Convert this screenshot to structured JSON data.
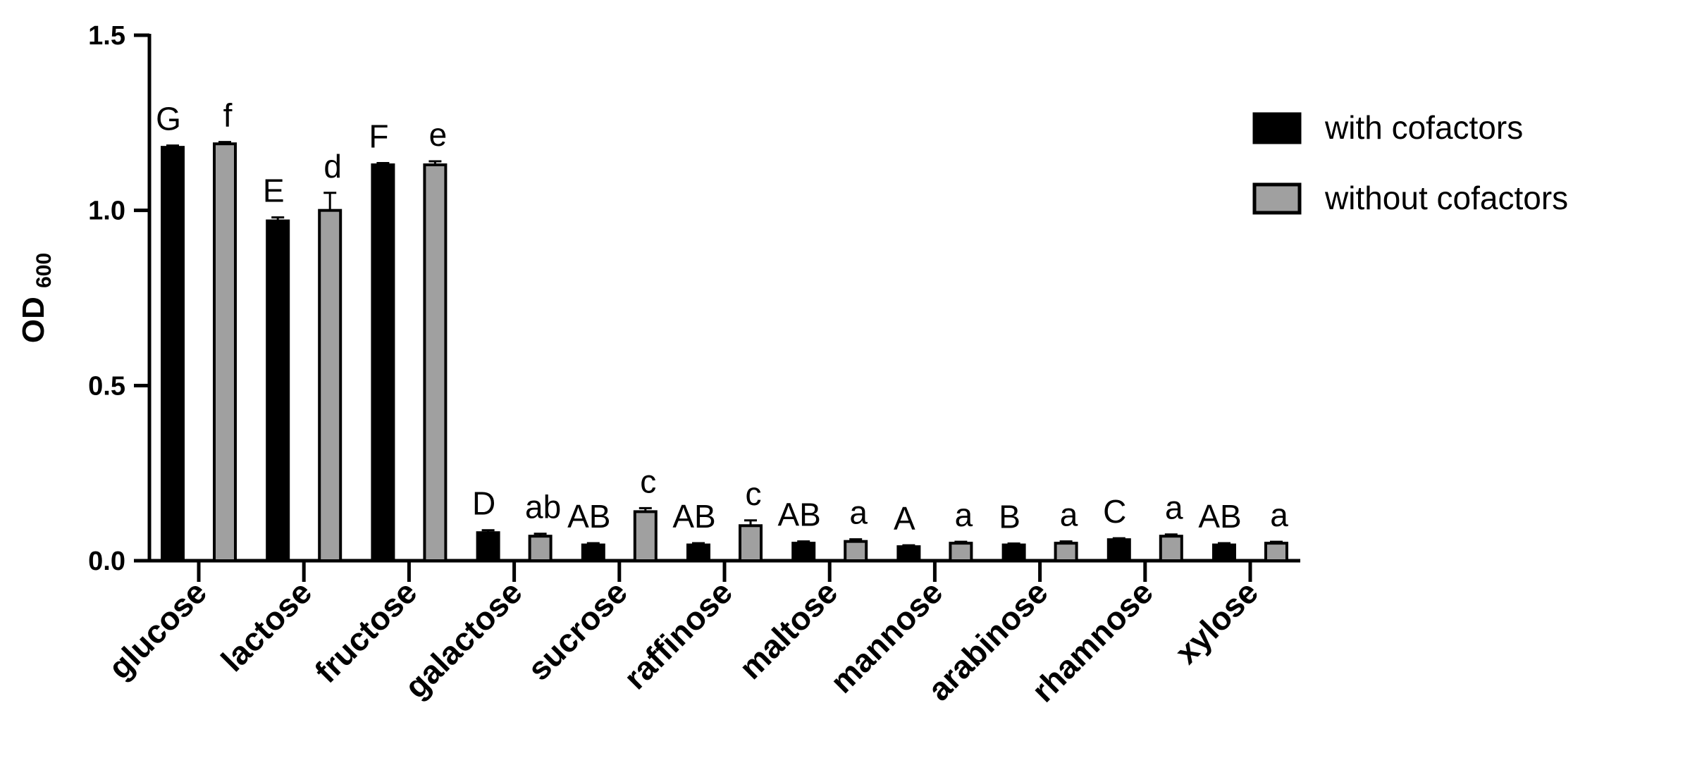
{
  "chart_data": {
    "type": "bar",
    "ylabel": "OD",
    "ylabel_subscript": "600",
    "xlabel": "",
    "ylim": [
      0,
      1.5
    ],
    "yticks": [
      0.0,
      0.5,
      1.0,
      1.5
    ],
    "ytick_labels": [
      "0.0",
      "0.5",
      "1.0",
      "1.5"
    ],
    "categories": [
      "glucose",
      "lactose",
      "fructose",
      "galactose",
      "sucrose",
      "raffinose",
      "maltose",
      "mannose",
      "arabinose",
      "rhamnose",
      "xylose"
    ],
    "series": [
      {
        "name": "with cofactors",
        "color": "#000000",
        "values": [
          1.18,
          0.97,
          1.13,
          0.08,
          0.045,
          0.045,
          0.05,
          0.04,
          0.045,
          0.06,
          0.045
        ],
        "errors": [
          0.005,
          0.01,
          0.005,
          0.007,
          0.005,
          0.005,
          0.005,
          0.004,
          0.004,
          0.004,
          0.005
        ],
        "letters": [
          "G",
          "E",
          "F",
          "D",
          "AB",
          "AB",
          "AB",
          "A",
          "B",
          "C",
          "AB"
        ]
      },
      {
        "name": "without cofactors",
        "color": "#a0a0a0",
        "values": [
          1.19,
          1.0,
          1.13,
          0.07,
          0.14,
          0.1,
          0.055,
          0.05,
          0.05,
          0.07,
          0.05
        ],
        "errors": [
          0.005,
          0.05,
          0.01,
          0.007,
          0.01,
          0.015,
          0.006,
          0.004,
          0.005,
          0.005,
          0.004
        ],
        "letters": [
          "f",
          "d",
          "e",
          "ab",
          "c",
          "c",
          "a",
          "a",
          "a",
          "a",
          "a"
        ]
      }
    ],
    "legend": {
      "position": "top-right"
    },
    "grid": false
  }
}
